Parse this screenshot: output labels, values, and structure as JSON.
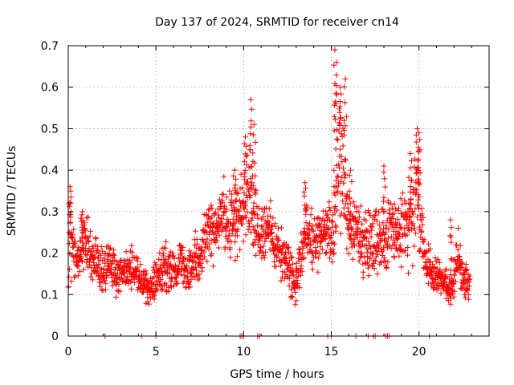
{
  "chart_data": {
    "type": "scatter",
    "title": "Day 137 of 2024, SRMTID for receiver cn14",
    "xlabel": "GPS time / hours",
    "ylabel": "SRMTID / TECUs",
    "xlim": [
      0,
      24
    ],
    "ylim": [
      0,
      0.7
    ],
    "x_ticks": [
      0,
      5,
      10,
      15,
      20
    ],
    "y_ticks": [
      0,
      0.1,
      0.2,
      0.3,
      0.4,
      0.5,
      0.6,
      0.7
    ],
    "x_tick_labels": [
      "0",
      "5",
      "10",
      "15",
      "20"
    ],
    "y_tick_labels": [
      "0",
      "0.1",
      "0.2",
      "0.3",
      "0.4",
      "0.5",
      "0.6",
      "0.7"
    ],
    "grid": true,
    "marker": "plus",
    "color": "#ff0000",
    "series": [
      {
        "name": "SRMTID",
        "profile_x": [
          0.0,
          0.15,
          0.3,
          0.5,
          0.8,
          1.0,
          1.3,
          1.6,
          2.0,
          2.4,
          2.8,
          3.2,
          3.6,
          4.0,
          4.3,
          4.6,
          5.0,
          5.3,
          5.6,
          6.0,
          6.4,
          6.8,
          7.2,
          7.6,
          8.0,
          8.4,
          8.8,
          9.2,
          9.6,
          10.0,
          10.3,
          10.6,
          11.0,
          11.4,
          11.8,
          12.2,
          12.6,
          12.9,
          13.2,
          13.6,
          14.0,
          14.4,
          14.8,
          15.1,
          15.4,
          15.7,
          16.0,
          16.4,
          16.8,
          17.2,
          17.6,
          18.0,
          18.4,
          18.8,
          19.2,
          19.6,
          19.9,
          20.2,
          20.6,
          21.0,
          21.4,
          21.8,
          22.2,
          22.5,
          22.9
        ],
        "profile_mid": [
          0.2,
          0.24,
          0.2,
          0.17,
          0.22,
          0.24,
          0.19,
          0.18,
          0.16,
          0.18,
          0.14,
          0.16,
          0.17,
          0.14,
          0.12,
          0.11,
          0.14,
          0.16,
          0.17,
          0.16,
          0.18,
          0.15,
          0.17,
          0.2,
          0.26,
          0.24,
          0.3,
          0.27,
          0.28,
          0.32,
          0.38,
          0.27,
          0.24,
          0.26,
          0.22,
          0.19,
          0.17,
          0.12,
          0.18,
          0.26,
          0.22,
          0.24,
          0.26,
          0.23,
          0.45,
          0.4,
          0.24,
          0.26,
          0.23,
          0.24,
          0.22,
          0.23,
          0.27,
          0.23,
          0.26,
          0.27,
          0.36,
          0.24,
          0.16,
          0.14,
          0.13,
          0.1,
          0.2,
          0.14,
          0.13
        ],
        "profile_spread": [
          0.09,
          0.11,
          0.07,
          0.05,
          0.06,
          0.07,
          0.06,
          0.05,
          0.06,
          0.05,
          0.05,
          0.04,
          0.05,
          0.05,
          0.04,
          0.04,
          0.05,
          0.05,
          0.06,
          0.06,
          0.05,
          0.05,
          0.06,
          0.06,
          0.07,
          0.07,
          0.07,
          0.08,
          0.08,
          0.1,
          0.14,
          0.08,
          0.07,
          0.07,
          0.06,
          0.06,
          0.06,
          0.05,
          0.06,
          0.07,
          0.07,
          0.06,
          0.07,
          0.08,
          0.18,
          0.16,
          0.06,
          0.07,
          0.07,
          0.09,
          0.07,
          0.07,
          0.08,
          0.08,
          0.08,
          0.1,
          0.12,
          0.08,
          0.05,
          0.04,
          0.04,
          0.03,
          0.06,
          0.05,
          0.04
        ],
        "peaks": [
          {
            "x": 0.1,
            "y": 0.36
          },
          {
            "x": 0.8,
            "y": 0.3
          },
          {
            "x": 9.5,
            "y": 0.4
          },
          {
            "x": 10.1,
            "y": 0.48
          },
          {
            "x": 10.4,
            "y": 0.57
          },
          {
            "x": 10.6,
            "y": 0.51
          },
          {
            "x": 13.5,
            "y": 0.37
          },
          {
            "x": 15.2,
            "y": 0.69
          },
          {
            "x": 15.3,
            "y": 0.66
          },
          {
            "x": 15.5,
            "y": 0.6
          },
          {
            "x": 15.8,
            "y": 0.62
          },
          {
            "x": 16.1,
            "y": 0.4
          },
          {
            "x": 18.0,
            "y": 0.41
          },
          {
            "x": 19.5,
            "y": 0.44
          },
          {
            "x": 19.9,
            "y": 0.5
          },
          {
            "x": 20.0,
            "y": 0.49
          },
          {
            "x": 21.8,
            "y": 0.28
          }
        ],
        "zero_points_x": [
          2.1,
          4.2,
          5.0,
          9.8,
          9.9,
          10.0,
          10.8,
          10.9,
          14.8,
          15.0,
          16.4,
          17.1,
          17.4,
          17.5,
          18.1,
          18.2,
          18.3,
          20.6
        ]
      }
    ]
  }
}
